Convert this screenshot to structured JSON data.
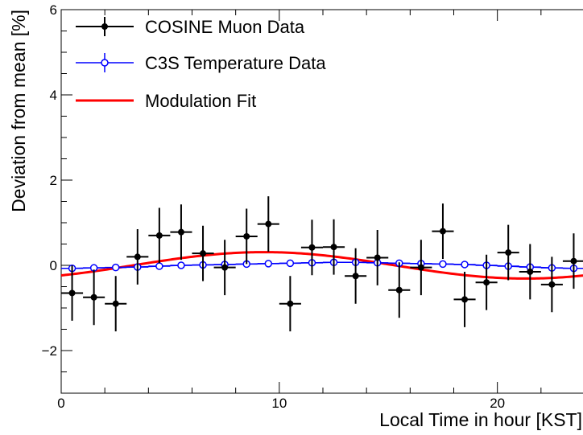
{
  "chart_data": {
    "type": "scatter",
    "title": "",
    "xlabel": "Local Time in hour [KST]",
    "ylabel": "Deviation from mean [%]",
    "xlim": [
      0,
      24
    ],
    "ylim": [
      -3,
      6
    ],
    "xticks": [
      0,
      10,
      20
    ],
    "yticks": [
      -2,
      0,
      2,
      4,
      6
    ],
    "xtick_labels": [
      "0",
      "10",
      "20"
    ],
    "ytick_labels": [
      "−2",
      "0",
      "2",
      "4",
      "6"
    ],
    "grid": false,
    "legend_position": "top-left",
    "series": [
      {
        "name": "COSINE Muon Data",
        "kind": "points-with-errors",
        "color": "#000000",
        "x": [
          0.5,
          1.5,
          2.5,
          3.5,
          4.5,
          5.5,
          6.5,
          7.5,
          8.5,
          9.5,
          10.5,
          11.5,
          12.5,
          13.5,
          14.5,
          15.5,
          16.5,
          17.5,
          18.5,
          19.5,
          20.5,
          21.5,
          22.5,
          23.5
        ],
        "y": [
          -0.65,
          -0.75,
          -0.9,
          0.2,
          0.7,
          0.78,
          0.28,
          -0.05,
          0.68,
          0.97,
          -0.9,
          0.42,
          0.43,
          -0.25,
          0.18,
          -0.58,
          -0.05,
          0.8,
          -0.8,
          -0.4,
          0.3,
          -0.15,
          -0.45,
          0.1
        ],
        "y_err": [
          0.65,
          0.65,
          0.65,
          0.65,
          0.65,
          0.65,
          0.65,
          0.65,
          0.65,
          0.65,
          0.65,
          0.65,
          0.65,
          0.65,
          0.65,
          0.65,
          0.65,
          0.65,
          0.65,
          0.65,
          0.65,
          0.65,
          0.65,
          0.65
        ],
        "x_err": 0.5
      },
      {
        "name": "C3S Temperature Data",
        "kind": "open-markers-line",
        "color": "#0000ff",
        "x": [
          0.5,
          1.5,
          2.5,
          3.5,
          4.5,
          5.5,
          6.5,
          7.5,
          8.5,
          9.5,
          10.5,
          11.5,
          12.5,
          13.5,
          14.5,
          15.5,
          16.5,
          17.5,
          18.5,
          19.5,
          20.5,
          21.5,
          22.5,
          23.5
        ],
        "y": [
          -0.07,
          -0.06,
          -0.05,
          -0.04,
          -0.02,
          0.0,
          0.01,
          0.02,
          0.03,
          0.04,
          0.05,
          0.06,
          0.07,
          0.07,
          0.06,
          0.05,
          0.04,
          0.03,
          0.02,
          0.0,
          -0.02,
          -0.04,
          -0.06,
          -0.07
        ],
        "y_err": [
          0.04,
          0.04,
          0.04,
          0.04,
          0.04,
          0.04,
          0.04,
          0.04,
          0.04,
          0.04,
          0.04,
          0.04,
          0.04,
          0.04,
          0.04,
          0.04,
          0.04,
          0.04,
          0.04,
          0.04,
          0.04,
          0.04,
          0.04,
          0.04
        ],
        "x_err": 0.5
      },
      {
        "name": "Modulation Fit",
        "kind": "curve",
        "color": "#ff0000",
        "amplitude": 0.31,
        "period": 24,
        "phase": 3.3,
        "offset": 0.0
      }
    ]
  }
}
